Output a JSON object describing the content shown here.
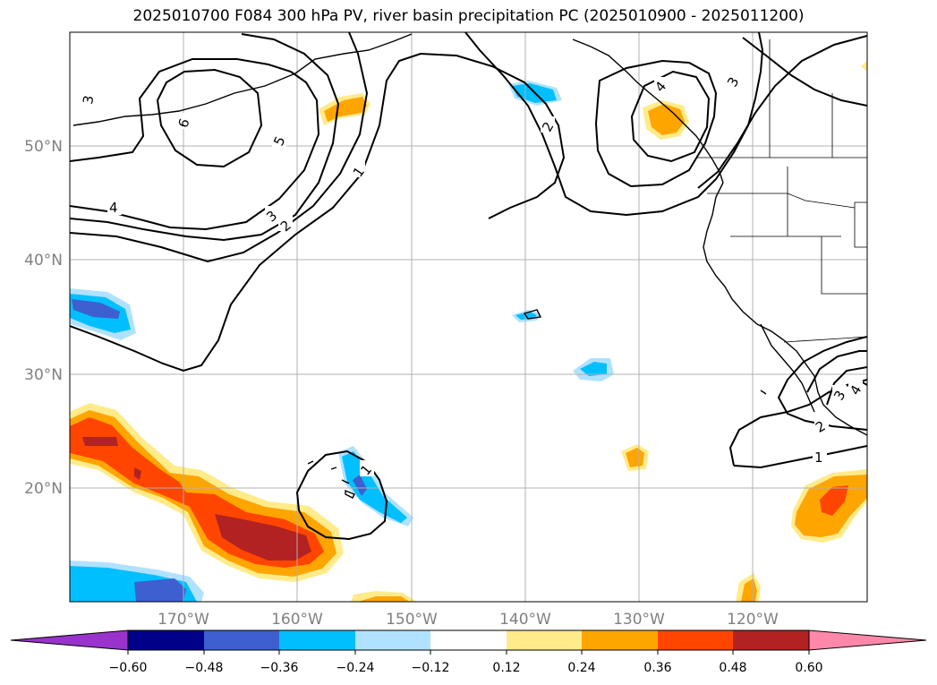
{
  "title": "2025010700 F084 300 hPa PV, river basin precipitation PC (2025010900 - 2025011200)",
  "lat_labels": [
    "50°N",
    "40°N",
    "30°N",
    "20°N"
  ],
  "lon_labels": [
    "170°W",
    "160°W",
    "150°W",
    "140°W",
    "130°W",
    "120°W"
  ],
  "colorbar": {
    "tick_labels": [
      "−0.60",
      "−0.48",
      "−0.36",
      "−0.24",
      "−0.12",
      "0.12",
      "0.24",
      "0.36",
      "0.48",
      "0.60"
    ],
    "colors": [
      "#9933cc",
      "#000088",
      "#3d5fcf",
      "#00bfff",
      "#b0e2ff",
      "#ffffff",
      "#ffeb8a",
      "#ffa500",
      "#ff4500",
      "#b22222",
      "#ff88aa"
    ]
  },
  "contour_labels": [
    "3",
    "6",
    "5",
    "4",
    "3",
    "2",
    "1",
    "2",
    "4",
    "3",
    "1",
    "1",
    "2",
    "3",
    "4"
  ],
  "colors": {
    "gridline": "#b0b0b0",
    "axis_label": "#808080",
    "coast": "#000000",
    "pv_contour": "#000000"
  }
}
